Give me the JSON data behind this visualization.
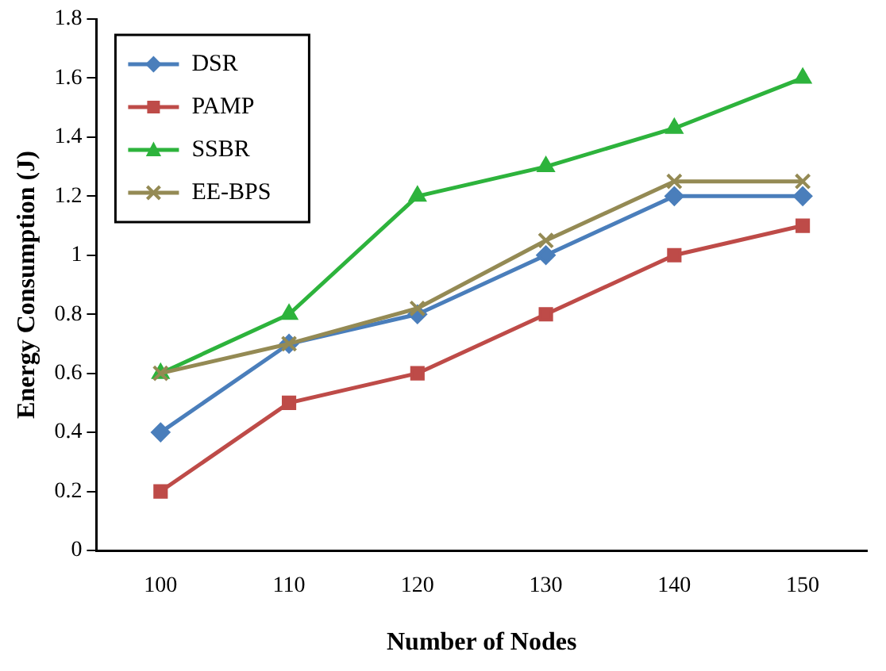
{
  "chart_data": {
    "type": "line",
    "xlabel": "Number of Nodes",
    "ylabel": "Energy Consumption (J)",
    "categories": [
      "100",
      "110",
      "120",
      "130",
      "140",
      "150"
    ],
    "ylim": [
      0,
      1.8
    ],
    "yticks": [
      0,
      0.2,
      0.4,
      0.6,
      0.8,
      1,
      1.2,
      1.4,
      1.6,
      1.8
    ],
    "grid": false,
    "legend": "top left",
    "line_style": "solid",
    "series": [
      {
        "name": "DSR",
        "color": "#4a7ebb",
        "marker": "diamond",
        "values": [
          0.4,
          0.7,
          0.8,
          1.0,
          1.2,
          1.2
        ]
      },
      {
        "name": "PAMP",
        "color": "#be4b48",
        "marker": "square",
        "values": [
          0.2,
          0.5,
          0.6,
          0.8,
          1.0,
          1.1
        ]
      },
      {
        "name": "SSBR",
        "color": "#2db33c",
        "marker": "triangle",
        "values": [
          0.6,
          0.8,
          1.2,
          1.3,
          1.43,
          1.6
        ]
      },
      {
        "name": "EE-BPS",
        "color": "#948a54",
        "marker": "cross",
        "values": [
          0.6,
          0.7,
          0.82,
          1.05,
          1.25,
          1.25
        ]
      }
    ]
  }
}
